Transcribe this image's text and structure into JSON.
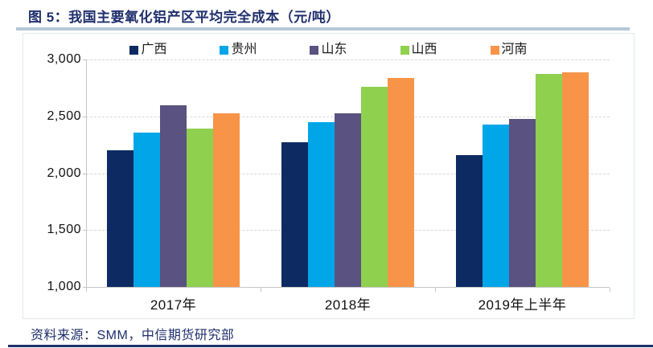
{
  "header": {
    "title": "图 5：我国主要氧化铝产区平均完全成本（元/吨）"
  },
  "footer": {
    "source": "资料来源：SMM，中信期货研究部"
  },
  "colors": {
    "accent_navy": "#20306d",
    "rule_light_blue": "#b4c8d8",
    "gridline": "#d9d9d9",
    "axis": "#c6c6c6"
  },
  "chart_data": {
    "type": "bar",
    "title": "图 5：我国主要氧化铝产区平均完全成本（元/吨）",
    "xlabel": "",
    "ylabel": "",
    "categories": [
      "2017年",
      "2018年",
      "2019年上半年"
    ],
    "series": [
      {
        "name": "广西",
        "color": "#0d2a63",
        "values": [
          2200,
          2270,
          2160
        ]
      },
      {
        "name": "贵州",
        "color": "#00a6e8",
        "values": [
          2360,
          2450,
          2430
        ]
      },
      {
        "name": "山东",
        "color": "#5a5280",
        "values": [
          2600,
          2530,
          2480
        ]
      },
      {
        "name": "山西",
        "color": "#8fd04e",
        "values": [
          2390,
          2760,
          2870
        ]
      },
      {
        "name": "河南",
        "color": "#f79448",
        "values": [
          2530,
          2840,
          2890
        ]
      }
    ],
    "ylim": [
      1000,
      3000
    ],
    "yticks": [
      1000,
      1500,
      2000,
      2500,
      3000
    ],
    "ytick_labels": [
      "1,000",
      "1,500",
      "2,000",
      "2,500",
      "3,000"
    ],
    "grid": "horizontal-dashed",
    "legend_position": "top"
  }
}
